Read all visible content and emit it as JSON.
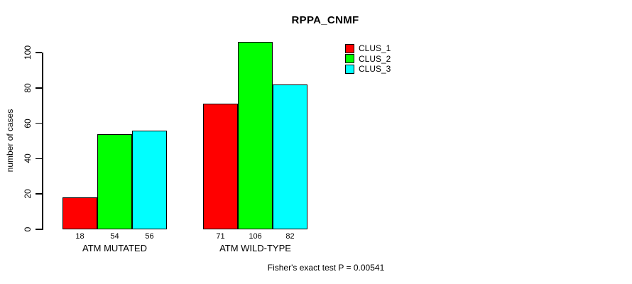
{
  "chart_data": {
    "type": "bar",
    "title": "RPPA_CNMF",
    "categories": [
      "ATM MUTATED",
      "ATM WILD-TYPE"
    ],
    "series": [
      {
        "name": "CLUS_1",
        "color": "#ff0000",
        "values": [
          18,
          71
        ]
      },
      {
        "name": "CLUS_2",
        "color": "#00ff00",
        "values": [
          54,
          106
        ]
      },
      {
        "name": "CLUS_3",
        "color": "#00ffff",
        "values": [
          56,
          82
        ]
      }
    ],
    "bar_value_labels": [
      [
        18,
        54,
        56
      ],
      [
        71,
        106,
        82
      ]
    ],
    "xlabel": "",
    "ylabel": "number of cases",
    "yticks": [
      0,
      20,
      40,
      60,
      80,
      100
    ],
    "ylim": [
      0,
      110
    ],
    "grid": false,
    "legend_position": "top-right",
    "annotation": "Fisher's exact test P = 0.00541",
    "bar_border_color": "#000000",
    "background_color": "#ffffff"
  }
}
